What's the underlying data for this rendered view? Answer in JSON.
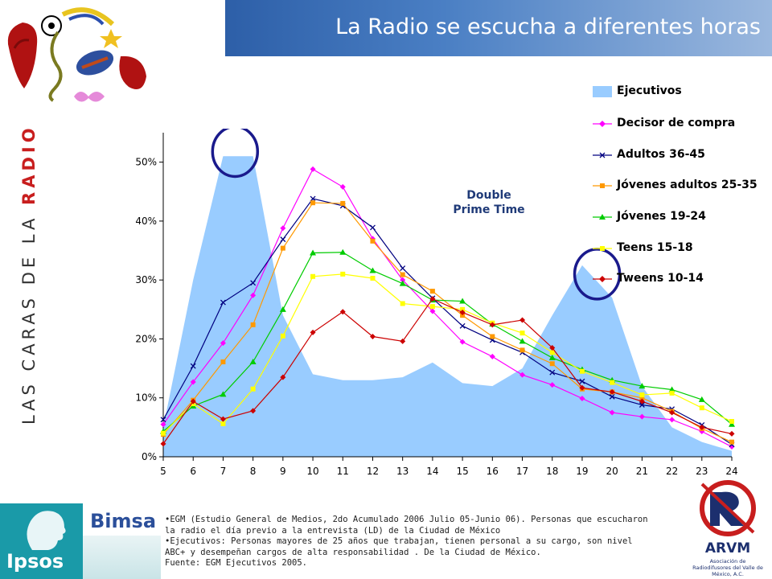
{
  "header": {
    "title": "La Radio se escucha a diferentes horas"
  },
  "side_banner": {
    "prefix": "LAS CARAS DE LA ",
    "highlight": "RADIO"
  },
  "annotation": {
    "line1": "Double",
    "line2": "Prime Time"
  },
  "footer": {
    "brand1": "Ipsos",
    "brand2": "Bimsa",
    "note1": "•EGM (Estudio General de Medios, 2do Acumulado 2006 Julio 05-Junio 06). Personas que escucharon la radio el día previo a la entrevista (LD) de la Ciudad de México",
    "note2": "•Ejecutivos: Personas mayores de 25 años que trabajan, tienen personal a su cargo, son nivel ABC+ y desempeñan cargos de alta responsabilidad . De la Ciudad de México.",
    "source": "Fuente: EGM Ejecutivos 2005.",
    "logo_name": "ARVM",
    "logo_sub": "Asociación de Radiodifusores del Valle de México, A.C."
  },
  "colors": {
    "ejecutivos": "#99ccff",
    "decisor": "#ff00ff",
    "adultos": "#000080",
    "jovenes_adultos": "#ff9900",
    "jovenes": "#00cc00",
    "teens": "#ffff00",
    "tweens": "#cc0000",
    "circle": "#1a1a8c"
  },
  "chart_data": {
    "type": "line",
    "x": [
      5,
      6,
      7,
      8,
      9,
      10,
      11,
      12,
      13,
      14,
      15,
      16,
      17,
      18,
      19,
      20,
      21,
      22,
      23,
      24
    ],
    "y_ticks": [
      "0%",
      "10%",
      "20%",
      "30%",
      "40%",
      "50%"
    ],
    "ylim": [
      0,
      55
    ],
    "grid": false,
    "legend_position": "right",
    "series": [
      {
        "name": "Ejecutivos",
        "type": "area",
        "color": "#99ccff",
        "values": [
          5,
          30,
          51,
          51,
          24,
          14,
          13,
          13,
          13.5,
          16,
          12.5,
          12,
          15,
          24,
          32.5,
          27,
          12,
          5,
          2.5,
          1
        ]
      },
      {
        "name": "Decisor de compra",
        "marker": "diamond",
        "color": "#ff00ff",
        "values": [
          5.5,
          12.7,
          19.3,
          27.4,
          38.8,
          48.8,
          45.8,
          37,
          30,
          24.7,
          19.5,
          17,
          13.9,
          12.2,
          9.9,
          7.5,
          6.8,
          6.3,
          4.3,
          1.7
        ]
      },
      {
        "name": "Adultos 36-45",
        "marker": "x",
        "color": "#000080",
        "values": [
          6.3,
          15.4,
          26.2,
          29.5,
          36.9,
          43.8,
          42.6,
          38.9,
          32,
          26.9,
          22.2,
          19.8,
          17.7,
          14.3,
          12.8,
          10.2,
          8.8,
          8.1,
          5.4,
          2.1
        ]
      },
      {
        "name": "Jóvenes adultos 25-35",
        "marker": "square",
        "color": "#ff9900",
        "values": [
          3.8,
          9.6,
          16.1,
          22.4,
          35.4,
          43.1,
          43,
          36.6,
          30.9,
          28.1,
          24,
          20.4,
          18.1,
          15.8,
          11.5,
          11,
          10,
          7.7,
          4.8,
          2.5
        ]
      },
      {
        "name": "Jóvenes 19-24",
        "marker": "triangle",
        "color": "#00cc00",
        "values": [
          4.3,
          8.6,
          10.6,
          16.1,
          25,
          34.6,
          34.7,
          31.6,
          29.4,
          26.6,
          26.4,
          22.5,
          19.6,
          16.8,
          14.8,
          13,
          12,
          11.4,
          9.7,
          5.5
        ]
      },
      {
        "name": "Teens 15-18",
        "marker": "square",
        "color": "#ffff00",
        "values": [
          4,
          9,
          5.6,
          11.5,
          20.5,
          30.6,
          31,
          30.3,
          26,
          25.5,
          25,
          22.7,
          21,
          17.7,
          14.5,
          12.6,
          10.5,
          10.8,
          8.3,
          6
        ]
      },
      {
        "name": "Tweens 10-14",
        "marker": "diamond",
        "color": "#cc0000",
        "values": [
          2.2,
          9.4,
          6.4,
          7.8,
          13.5,
          21.1,
          24.6,
          20.4,
          19.6,
          26.8,
          24.5,
          22.4,
          23.2,
          18.5,
          11.7,
          11,
          9.4,
          7.5,
          5,
          3.9
        ]
      }
    ],
    "highlight_circles": [
      {
        "x": 7.4,
        "y": 51.8
      },
      {
        "x": 19.5,
        "y": 31
      }
    ]
  }
}
